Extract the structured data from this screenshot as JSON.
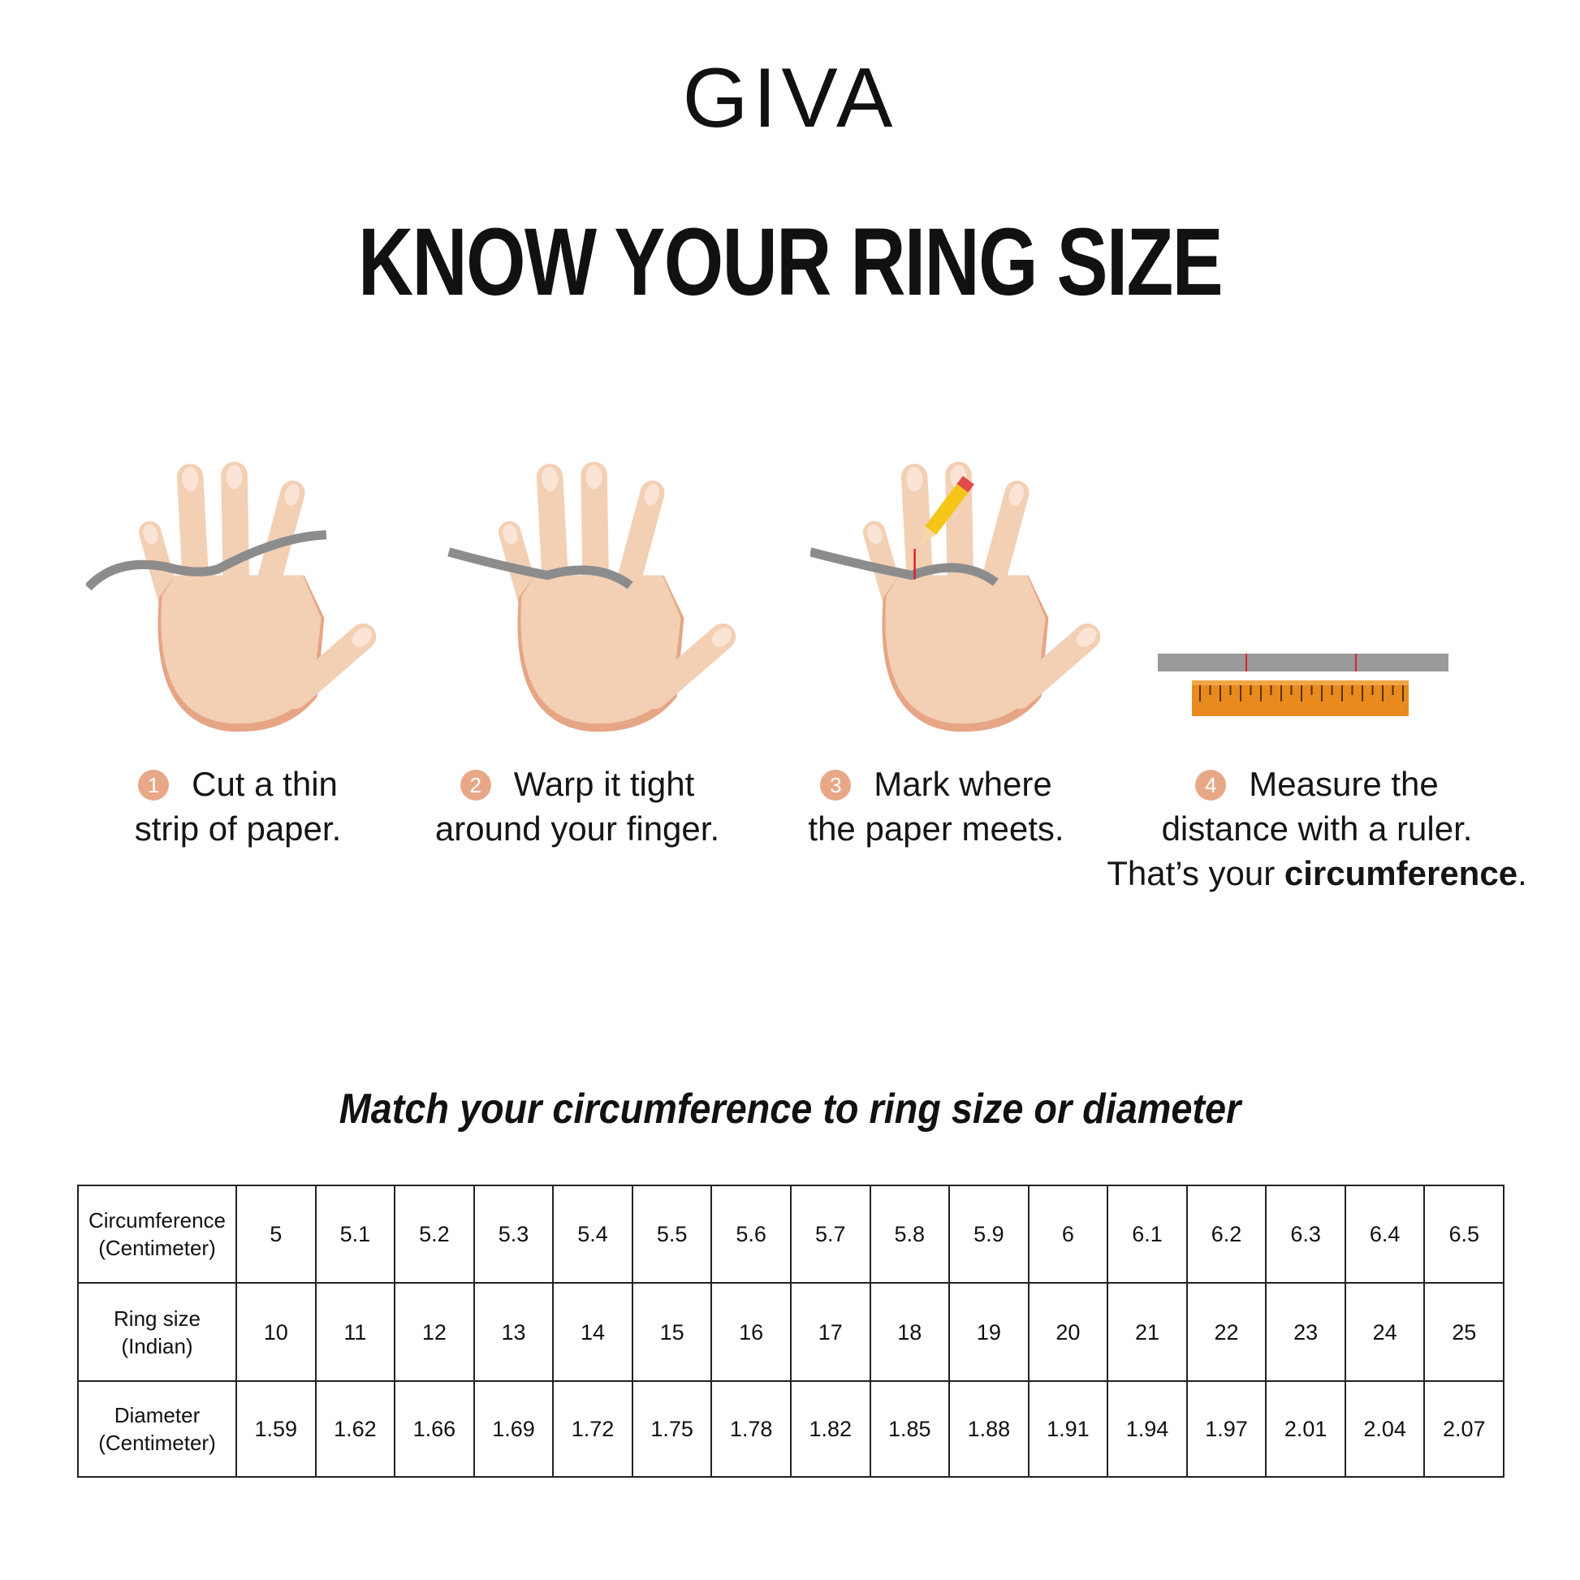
{
  "brand": {
    "logo": "GIVA"
  },
  "title": "KNOW YOUR RING SIZE",
  "steps": [
    {
      "number": "1",
      "line1": "Cut a thin",
      "line2": "strip of paper."
    },
    {
      "number": "2",
      "line1": "Warp it tight",
      "line2": "around your finger."
    },
    {
      "number": "3",
      "line1": "Mark where",
      "line2": "the paper meets."
    },
    {
      "number": "4",
      "line1": "Measure the",
      "line2": "distance with a ruler.",
      "line3_prefix": "That’s your ",
      "line3_bold": "circumference",
      "line3_suffix": "."
    }
  ],
  "subtitle": "Match your circumference to ring size or diameter",
  "colors": {
    "skin": "#f3cfb4",
    "skin_shadow": "#e6a585",
    "paper": "#8c8c8c",
    "ruler": "#e88a1e",
    "number_badge": "#e8a888"
  },
  "table": {
    "rows": [
      {
        "header_line1": "Circumference",
        "header_line2": "(Centimeter)",
        "values": [
          "5",
          "5.1",
          "5.2",
          "5.3",
          "5.4",
          "5.5",
          "5.6",
          "5.7",
          "5.8",
          "5.9",
          "6",
          "6.1",
          "6.2",
          "6.3",
          "6.4",
          "6.5"
        ]
      },
      {
        "header_line1": "Ring size",
        "header_line2": "(Indian)",
        "values": [
          "10",
          "11",
          "12",
          "13",
          "14",
          "15",
          "16",
          "17",
          "18",
          "19",
          "20",
          "21",
          "22",
          "23",
          "24",
          "25"
        ]
      },
      {
        "header_line1": "Diameter",
        "header_line2": "(Centimeter)",
        "values": [
          "1.59",
          "1.62",
          "1.66",
          "1.69",
          "1.72",
          "1.75",
          "1.78",
          "1.82",
          "1.85",
          "1.88",
          "1.91",
          "1.94",
          "1.97",
          "2.01",
          "2.04",
          "2.07"
        ]
      }
    ]
  }
}
